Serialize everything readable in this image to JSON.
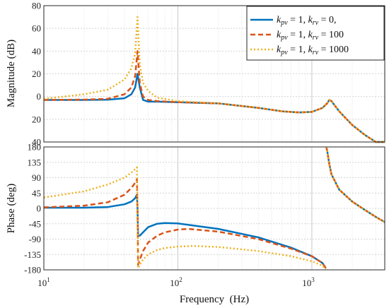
{
  "chart_data": [
    {
      "type": "line",
      "title": "",
      "xlabel": "",
      "ylabel": "Magnitude (dB)",
      "x_scale": "log",
      "xlim": [
        10,
        3500
      ],
      "ylim": [
        -40,
        80
      ],
      "yticks": [
        -40,
        -20,
        0,
        20,
        40,
        60,
        80
      ],
      "ytick_labels": [
        "40",
        "20",
        "0",
        "20",
        "40",
        "60",
        "80"
      ],
      "grid": true,
      "legend": "top-right",
      "series": [
        {
          "name": "kpv = 1, krv = 0,",
          "color": "#0072BD",
          "style": "solid",
          "x": [
            10,
            20,
            30,
            40,
            45,
            48,
            50,
            52,
            55,
            60,
            70,
            100,
            200,
            400,
            600,
            800,
            1000,
            1200,
            1300,
            1350,
            1400,
            1600,
            2000,
            2500,
            3000,
            3500
          ],
          "y": [
            -3,
            -3,
            -2.8,
            -1.5,
            2,
            8,
            20,
            8,
            -3,
            -4.5,
            -4.5,
            -5,
            -6,
            -10,
            -13,
            -14,
            -13.5,
            -10,
            -6,
            -3,
            -4,
            -13,
            -25,
            -34,
            -42,
            -48
          ]
        },
        {
          "name": "kpv = 1, krv = 100",
          "color": "#D95319",
          "style": "dashed",
          "x": [
            10,
            20,
            30,
            40,
            45,
            48,
            50,
            52,
            55,
            60,
            70,
            100,
            200,
            400,
            600,
            800,
            1000,
            1200,
            1300,
            1350,
            1400,
            1600,
            2000,
            2500,
            3000,
            3500
          ],
          "y": [
            -3,
            -2.7,
            -2,
            2,
            8,
            18,
            40,
            12,
            0,
            -3,
            -4,
            -5,
            -6,
            -10,
            -13,
            -14,
            -13.5,
            -10,
            -6,
            -3,
            -4,
            -13,
            -25,
            -34,
            -42,
            -48
          ]
        },
        {
          "name": "kpv = 1, krv = 1000",
          "color": "#EDB120",
          "style": "dotted",
          "x": [
            10,
            20,
            30,
            40,
            45,
            48,
            50,
            52,
            55,
            60,
            70,
            100,
            200,
            400,
            600,
            800,
            1000,
            1200,
            1300,
            1350,
            1400,
            1600,
            2000,
            2500,
            3000,
            3500
          ],
          "y": [
            -2,
            2,
            6,
            15,
            25,
            38,
            70,
            28,
            12,
            5,
            -1,
            -4,
            -6,
            -10,
            -13,
            -14,
            -13.5,
            -10,
            -6,
            -3,
            -4,
            -13,
            -25,
            -34,
            -42,
            -48
          ]
        }
      ]
    },
    {
      "type": "line",
      "title": "",
      "xlabel": "Frequency  (Hz)",
      "ylabel": "Phase (deg)",
      "x_scale": "log",
      "xlim": [
        10,
        3500
      ],
      "ylim": [
        -180,
        180
      ],
      "yticks": [
        -180,
        -135,
        -90,
        -45,
        0,
        45,
        90,
        135,
        180
      ],
      "xtick_labels": [
        "10",
        "1",
        "2",
        "10",
        "2",
        "3"
      ],
      "grid": true,
      "series": [
        {
          "name": "kpv = 1, krv = 0,",
          "color": "#0072BD",
          "style": "solid",
          "x": [
            10,
            20,
            30,
            40,
            45,
            48,
            49.5,
            50,
            50.5,
            52,
            55,
            60,
            70,
            80,
            100,
            200,
            400,
            700,
            1000,
            1200,
            1270,
            1280,
            1300,
            1350,
            1400,
            1600,
            2000,
            2500,
            3000,
            3500
          ],
          "y": [
            2,
            2,
            4,
            12,
            20,
            30,
            40,
            0,
            -80,
            -80,
            -70,
            -55,
            -45,
            -43,
            -44,
            -60,
            -85,
            -115,
            -140,
            -160,
            -175,
            180,
            170,
            130,
            100,
            55,
            20,
            -5,
            -25,
            -40
          ],
          "breaks_after_index": [
            20
          ]
        },
        {
          "name": "kpv = 1, krv = 100",
          "color": "#D95319",
          "style": "dashed",
          "x": [
            10,
            20,
            30,
            40,
            45,
            48,
            49.5,
            50,
            50.5,
            52,
            55,
            60,
            70,
            80,
            100,
            120,
            200,
            400,
            700,
            1000,
            1200,
            1270,
            1280,
            1300,
            1350,
            1400,
            1600,
            2000,
            2500,
            3000,
            3500
          ],
          "y": [
            3,
            8,
            18,
            40,
            60,
            75,
            85,
            0,
            -165,
            -150,
            -125,
            -100,
            -80,
            -70,
            -62,
            -60,
            -68,
            -90,
            -118,
            -140,
            -160,
            -175,
            180,
            170,
            130,
            100,
            55,
            20,
            -5,
            -25,
            -40
          ],
          "breaks_after_index": [
            21
          ]
        },
        {
          "name": "kpv = 1, krv = 1000",
          "color": "#EDB120",
          "style": "dotted",
          "x": [
            10,
            20,
            30,
            40,
            45,
            48,
            49.5,
            50,
            50.5,
            52,
            55,
            60,
            70,
            80,
            100,
            130,
            200,
            400,
            700,
            1000,
            1200,
            1270,
            1280,
            1300,
            1350,
            1400,
            1600,
            2000,
            2500,
            3000,
            3500
          ],
          "y": [
            32,
            50,
            70,
            90,
            105,
            115,
            120,
            0,
            -175,
            -165,
            -150,
            -135,
            -122,
            -116,
            -112,
            -110,
            -113,
            -125,
            -140,
            -155,
            -168,
            -178,
            180,
            170,
            130,
            100,
            55,
            20,
            -5,
            -25,
            -40
          ],
          "breaks_after_index": [
            21
          ]
        }
      ]
    }
  ],
  "legend": {
    "entries": [
      {
        "p1": "k",
        "s1": "pv",
        "v1": " = 1, ",
        "p2": "k",
        "s2": "rv",
        "v2": " = 0,"
      },
      {
        "p1": "k",
        "s1": "pv",
        "v1": " = 1, ",
        "p2": "k",
        "s2": "rv",
        "v2": " = 100"
      },
      {
        "p1": "k",
        "s1": "pv",
        "v1": " = 1, ",
        "p2": "k",
        "s2": "rv",
        "v2": " = 1000"
      }
    ]
  }
}
